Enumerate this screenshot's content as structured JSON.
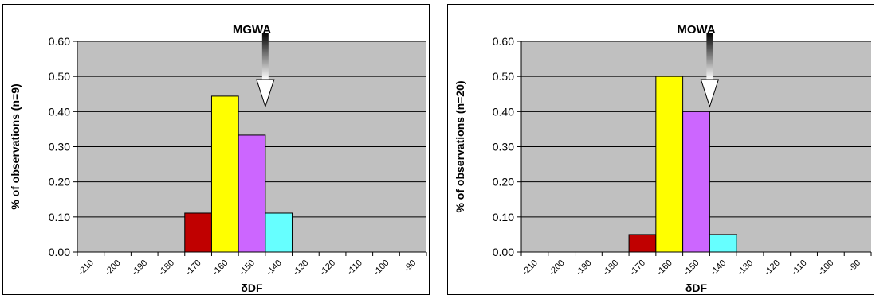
{
  "chart_data": [
    {
      "type": "bar",
      "title": "MGWA",
      "xlabel": "δDF",
      "ylabel": "% of observations (n=9)",
      "ylim": [
        0,
        0.6
      ],
      "yticks": [
        "0.00",
        "0.10",
        "0.20",
        "0.30",
        "0.40",
        "0.50",
        "0.60"
      ],
      "categories": [
        "-210",
        "-200",
        "-190",
        "-180",
        "-170",
        "-160",
        "-150",
        "-140",
        "-130",
        "-120",
        "-110",
        "-100",
        "-90"
      ],
      "bins": [
        {
          "from": -170,
          "to": -160,
          "value": 0.111,
          "color": "#c00000"
        },
        {
          "from": -160,
          "to": -150,
          "value": 0.444,
          "color": "#ffff00"
        },
        {
          "from": -150,
          "to": -140,
          "value": 0.333,
          "color": "#cc66ff"
        },
        {
          "from": -140,
          "to": -130,
          "value": 0.111,
          "color": "#66ffff"
        }
      ],
      "arrow_at": -140,
      "grid": true
    },
    {
      "type": "bar",
      "title": "MOWA",
      "xlabel": "δDF",
      "ylabel": "% of observations (n=20)",
      "ylim": [
        0,
        0.6
      ],
      "yticks": [
        "0.00",
        "0.10",
        "0.20",
        "0.30",
        "0.40",
        "0.50",
        "0.60"
      ],
      "categories": [
        "-210",
        "-200",
        "-190",
        "-180",
        "-170",
        "-160",
        "-150",
        "-140",
        "-130",
        "-120",
        "-110",
        "-100",
        "-90"
      ],
      "bins": [
        {
          "from": -170,
          "to": -160,
          "value": 0.05,
          "color": "#c00000"
        },
        {
          "from": -160,
          "to": -150,
          "value": 0.5,
          "color": "#ffff00"
        },
        {
          "from": -150,
          "to": -140,
          "value": 0.4,
          "color": "#cc66ff"
        },
        {
          "from": -140,
          "to": -130,
          "value": 0.05,
          "color": "#66ffff"
        }
      ],
      "arrow_at": -140,
      "grid": true
    }
  ],
  "colors": {
    "plot_background": "#c0c0c0",
    "gridline": "#000000"
  }
}
